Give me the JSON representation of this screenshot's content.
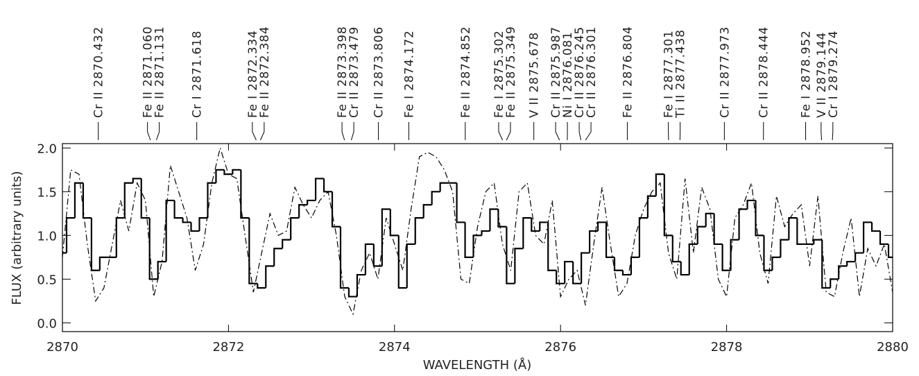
{
  "chart_data": {
    "type": "line",
    "xlabel": "WAVELENGTH (Å)",
    "ylabel": "FLUX (arbitrary units)",
    "xlim": [
      2870,
      2880
    ],
    "ylim": [
      -0.1,
      2.05
    ],
    "xticks": [
      2870,
      2872,
      2874,
      2876,
      2878,
      2880
    ],
    "yticks": [
      {
        "value": 0,
        "label": "0.0"
      },
      0.5,
      {
        "value": 1,
        "label": "1.0"
      },
      1.5,
      {
        "value": 2,
        "label": "2.0"
      }
    ],
    "x": [
      2870.0,
      2870.1,
      2870.2,
      2870.3,
      2870.4,
      2870.5,
      2870.6,
      2870.7,
      2870.8,
      2870.9,
      2871.0,
      2871.1,
      2871.2,
      2871.3,
      2871.4,
      2871.5,
      2871.6,
      2871.7,
      2871.8,
      2871.9,
      2872.0,
      2872.1,
      2872.2,
      2872.3,
      2872.4,
      2872.5,
      2872.6,
      2872.7,
      2872.8,
      2872.9,
      2873.0,
      2873.1,
      2873.2,
      2873.3,
      2873.4,
      2873.5,
      2873.6,
      2873.7,
      2873.8,
      2873.9,
      2874.0,
      2874.1,
      2874.2,
      2874.3,
      2874.4,
      2874.5,
      2874.6,
      2874.7,
      2874.8,
      2874.9,
      2875.0,
      2875.1,
      2875.2,
      2875.3,
      2875.4,
      2875.5,
      2875.6,
      2875.7,
      2875.8,
      2875.9,
      2876.0,
      2876.1,
      2876.2,
      2876.3,
      2876.4,
      2876.5,
      2876.6,
      2876.7,
      2876.8,
      2876.9,
      2877.0,
      2877.1,
      2877.2,
      2877.3,
      2877.4,
      2877.5,
      2877.6,
      2877.7,
      2877.8,
      2877.9,
      2878.0,
      2878.1,
      2878.2,
      2878.3,
      2878.4,
      2878.5,
      2878.6,
      2878.7,
      2878.8,
      2878.9,
      2879.0,
      2879.1,
      2879.2,
      2879.3,
      2879.4,
      2879.5,
      2879.6,
      2879.7,
      2879.8,
      2879.9,
      2880.0
    ],
    "series": [
      {
        "color": "#000000",
        "line_style": "solid",
        "step": true,
        "values": [
          0.8,
          1.2,
          1.6,
          1.2,
          0.6,
          0.75,
          0.75,
          1.2,
          1.6,
          1.65,
          1.2,
          0.5,
          0.7,
          1.4,
          1.2,
          1.15,
          1.05,
          1.2,
          1.6,
          1.75,
          1.7,
          1.75,
          1.2,
          0.45,
          0.4,
          0.65,
          0.85,
          0.95,
          1.2,
          1.35,
          1.4,
          1.65,
          1.5,
          1.1,
          0.4,
          0.3,
          0.55,
          0.9,
          0.65,
          1.3,
          1.0,
          0.4,
          0.9,
          1.2,
          1.35,
          1.5,
          1.6,
          1.6,
          1.15,
          0.75,
          1.0,
          1.05,
          1.3,
          1.1,
          0.45,
          0.85,
          1.2,
          1.05,
          1.15,
          0.6,
          0.45,
          0.7,
          0.45,
          0.8,
          1.05,
          1.15,
          0.75,
          0.6,
          0.55,
          0.75,
          1.2,
          1.45,
          1.7,
          1.0,
          0.7,
          0.55,
          0.9,
          1.1,
          1.25,
          0.9,
          0.6,
          0.95,
          1.3,
          1.4,
          1.0,
          0.6,
          0.75,
          0.95,
          1.2,
          0.9,
          0.9,
          0.95,
          0.4,
          0.5,
          0.65,
          0.7,
          0.8,
          1.15,
          1.05,
          0.9,
          0.75
        ]
      },
      {
        "color": "#000000",
        "line_style": "dashdot",
        "step": false,
        "values": [
          0.75,
          1.75,
          1.7,
          0.9,
          0.25,
          0.4,
          0.9,
          1.4,
          1.05,
          1.6,
          1.4,
          0.3,
          0.7,
          1.8,
          1.5,
          1.2,
          0.6,
          0.9,
          1.6,
          2.0,
          1.7,
          1.65,
          1.0,
          0.35,
          0.8,
          1.25,
          1.0,
          1.05,
          1.55,
          1.35,
          1.2,
          1.4,
          1.5,
          1.0,
          0.3,
          0.1,
          0.6,
          0.8,
          0.5,
          1.2,
          0.9,
          0.6,
          1.3,
          1.9,
          1.95,
          1.9,
          1.75,
          1.5,
          0.5,
          0.45,
          1.1,
          1.5,
          1.6,
          0.9,
          0.6,
          1.5,
          1.6,
          1.0,
          0.9,
          1.4,
          0.3,
          0.5,
          0.6,
          0.2,
          0.9,
          1.55,
          0.9,
          0.3,
          0.45,
          1.0,
          1.3,
          1.5,
          1.6,
          0.8,
          0.5,
          1.65,
          0.8,
          1.55,
          1.3,
          0.5,
          0.3,
          1.2,
          1.35,
          1.6,
          0.8,
          0.45,
          1.45,
          1.1,
          1.25,
          1.35,
          0.65,
          1.45,
          0.35,
          0.3,
          0.8,
          1.2,
          0.3,
          0.85,
          0.65,
          0.9,
          0.35
        ]
      }
    ],
    "annotations": [
      {
        "text": "Cr II 2870.432",
        "x": 2870.432
      },
      {
        "text": "Fe II 2871.060",
        "x": 2871.06
      },
      {
        "text": "Fe II 2871.131",
        "x": 2871.131
      },
      {
        "text": "Cr I 2871.618",
        "x": 2871.618
      },
      {
        "text": "Fe I 2872.334",
        "x": 2872.334
      },
      {
        "text": "Fe II 2872.384",
        "x": 2872.384
      },
      {
        "text": "Fe II 2873.398",
        "x": 2873.398
      },
      {
        "text": "Cr II 2873.479",
        "x": 2873.479
      },
      {
        "text": "Cr II 2873.806",
        "x": 2873.806
      },
      {
        "text": "Fe I 2874.172",
        "x": 2874.172
      },
      {
        "text": "Fe II 2874.852",
        "x": 2874.852
      },
      {
        "text": "Fe I 2875.302",
        "x": 2875.302
      },
      {
        "text": "Fe II 2875.349",
        "x": 2875.349
      },
      {
        "text": "V II 2875.678",
        "x": 2875.678
      },
      {
        "text": "Cr II 2875.987",
        "x": 2875.987
      },
      {
        "text": "Ni I 2876.081",
        "x": 2876.081
      },
      {
        "text": "Cr II 2876.245",
        "x": 2876.245
      },
      {
        "text": "Cr II 2876.301",
        "x": 2876.301
      },
      {
        "text": "Fe II 2876.804",
        "x": 2876.804
      },
      {
        "text": "Fe I 2877.301",
        "x": 2877.301
      },
      {
        "text": "Ti II 2877.438",
        "x": 2877.438
      },
      {
        "text": "Cr II 2877.973",
        "x": 2877.973
      },
      {
        "text": "Cr II 2878.444",
        "x": 2878.444
      },
      {
        "text": "Fe I 2878.952",
        "x": 2878.952
      },
      {
        "text": "V II 2879.144",
        "x": 2879.144
      },
      {
        "text": "Cr I 2879.274",
        "x": 2879.274
      }
    ]
  }
}
